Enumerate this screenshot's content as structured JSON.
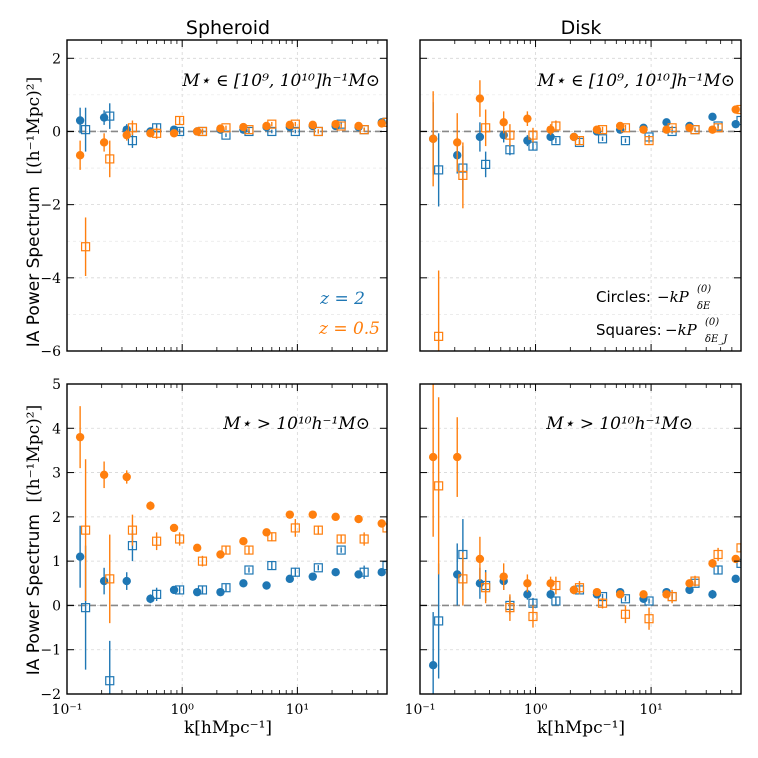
{
  "figure": {
    "column_titles": [
      "Spheroid",
      "Disk"
    ],
    "ylabel": "IA Power Spectrum",
    "ylabel_units": "[(h⁻¹Mpc)²]",
    "xlabel": "k[hMpc⁻¹]",
    "x_tick_labels": [
      "10⁻¹",
      "10⁰",
      "10¹"
    ],
    "series_legend": [
      {
        "name": "z = 2",
        "color": "#1f77b4"
      },
      {
        "name": "z = 0.5",
        "color": "#ff7f0e"
      }
    ],
    "marker_notes": [
      {
        "label": "Circles:",
        "math": "−kP",
        "sub": "δE",
        "sup": "(0)"
      },
      {
        "label": "Squares:",
        "math": "−kP",
        "sub": "δE_J",
        "sup": "(0)"
      }
    ]
  },
  "chart_data": [
    {
      "type": "scatter",
      "panel": "top-left",
      "title": "Spheroid",
      "annotation": "M⋆ ∈ [10⁹, 10¹⁰]h⁻¹M⊙",
      "xscale": "log",
      "xlim": [
        0.1,
        60
      ],
      "ylim": [
        -6,
        2.5
      ],
      "yticks": [
        -6,
        -4,
        -2,
        0,
        2
      ],
      "ylabel": "IA Power Spectrum [(h⁻¹Mpc)²]",
      "series": [
        {
          "name": "z = 2 circles",
          "color": "#1f77b4",
          "marker": "circle",
          "x": [
            0.13,
            0.21,
            0.33,
            0.53,
            0.85,
            1.35,
            2.15,
            3.4,
            5.4,
            8.6,
            13.6,
            21.5,
            34,
            54
          ],
          "y": [
            0.3,
            0.38,
            0.05,
            0.0,
            0.05,
            0.0,
            0.05,
            0.05,
            0.12,
            0.12,
            0.15,
            0.15,
            0.12,
            0.25
          ],
          "err": [
            0.35,
            0.2,
            0.15,
            0.1,
            0.08,
            0.06,
            0.05,
            0.05,
            0.05,
            0.05,
            0.05,
            0.05,
            0.05,
            0.05
          ]
        },
        {
          "name": "z = 2 squares",
          "color": "#1f77b4",
          "marker": "square",
          "x": [
            0.145,
            0.235,
            0.37,
            0.6,
            0.95,
            1.5,
            2.4,
            3.8,
            6.0,
            9.6,
            15.2,
            24,
            38,
            60
          ],
          "y": [
            0.05,
            0.42,
            -0.25,
            0.1,
            0.0,
            0.0,
            -0.1,
            0.0,
            0.0,
            0.0,
            0.0,
            0.2,
            0.05,
            0.25
          ],
          "err": [
            0.6,
            0.35,
            0.2,
            0.1,
            0.08,
            0.06,
            0.05,
            0.05,
            0.05,
            0.05,
            0.05,
            0.05,
            0.05,
            0.05
          ]
        },
        {
          "name": "z = 0.5 circles",
          "color": "#ff7f0e",
          "marker": "circle",
          "x": [
            0.13,
            0.21,
            0.33,
            0.53,
            0.85,
            1.35,
            2.15,
            3.4,
            5.4,
            8.6,
            13.6,
            21.5,
            34,
            54
          ],
          "y": [
            -0.65,
            -0.3,
            -0.1,
            -0.05,
            -0.05,
            0.0,
            0.08,
            0.12,
            0.15,
            0.18,
            0.18,
            0.2,
            0.15,
            0.22
          ],
          "err": [
            0.4,
            0.25,
            0.15,
            0.1,
            0.08,
            0.06,
            0.05,
            0.05,
            0.05,
            0.05,
            0.05,
            0.05,
            0.05,
            0.05
          ]
        },
        {
          "name": "z = 0.5 squares",
          "color": "#ff7f0e",
          "marker": "square",
          "x": [
            0.145,
            0.235,
            0.37,
            0.6,
            0.95,
            1.5,
            2.4,
            3.8,
            6.0,
            9.6,
            15.2,
            24,
            38,
            60
          ],
          "y": [
            -3.15,
            -0.75,
            0.1,
            -0.05,
            0.3,
            0.0,
            0.1,
            0.05,
            0.2,
            0.2,
            0.0,
            0.15,
            0.05,
            0.25
          ],
          "err": [
            0.8,
            0.5,
            0.2,
            0.15,
            0.1,
            0.08,
            0.06,
            0.06,
            0.06,
            0.06,
            0.06,
            0.06,
            0.06,
            0.06
          ]
        }
      ]
    },
    {
      "type": "scatter",
      "panel": "top-right",
      "title": "Disk",
      "annotation": "M⋆ ∈ [10⁹, 10¹⁰]h⁻¹M⊙",
      "xscale": "log",
      "xlim": [
        0.1,
        60
      ],
      "ylim": [
        -6,
        2.5
      ],
      "yticks": [
        -6,
        -4,
        -2,
        0,
        2
      ],
      "series": [
        {
          "name": "z = 2 circles",
          "color": "#1f77b4",
          "marker": "circle",
          "x": [
            0.13,
            0.21,
            0.33,
            0.53,
            0.85,
            1.35,
            2.15,
            3.4,
            5.4,
            8.6,
            13.6,
            21.5,
            34,
            54
          ],
          "y": [
            -0.2,
            -0.65,
            -0.15,
            -0.1,
            -0.25,
            -0.15,
            -0.15,
            0.0,
            0.05,
            0.1,
            0.25,
            0.15,
            0.4,
            0.2
          ],
          "err": [
            1.0,
            0.5,
            0.4,
            0.2,
            0.15,
            0.1,
            0.08,
            0.06,
            0.06,
            0.06,
            0.06,
            0.06,
            0.1,
            0.06
          ]
        },
        {
          "name": "z = 2 squares",
          "color": "#1f77b4",
          "marker": "square",
          "x": [
            0.145,
            0.235,
            0.37,
            0.6,
            0.95,
            1.5,
            2.4,
            3.8,
            6.0,
            9.6,
            15.2,
            24,
            38,
            60
          ],
          "y": [
            -1.05,
            -1.0,
            -0.9,
            -0.5,
            -0.4,
            -0.25,
            -0.3,
            -0.2,
            -0.25,
            -0.15,
            0.0,
            0.05,
            0.15,
            0.3
          ],
          "err": [
            1.0,
            0.6,
            0.35,
            0.15,
            0.1,
            0.08,
            0.06,
            0.06,
            0.06,
            0.06,
            0.06,
            0.06,
            0.06,
            0.06
          ]
        },
        {
          "name": "z = 0.5 circles",
          "color": "#ff7f0e",
          "marker": "circle",
          "x": [
            0.13,
            0.21,
            0.33,
            0.53,
            0.85,
            1.35,
            2.15,
            3.4,
            5.4,
            8.6,
            13.6,
            21.5,
            34,
            54
          ],
          "y": [
            -0.2,
            -0.3,
            0.9,
            0.25,
            0.35,
            0.05,
            -0.15,
            0.05,
            0.15,
            0.05,
            0.05,
            0.1,
            0.05,
            0.6
          ],
          "err": [
            1.3,
            0.8,
            0.5,
            0.3,
            0.2,
            0.15,
            0.1,
            0.08,
            0.08,
            0.08,
            0.06,
            0.06,
            0.06,
            0.06
          ]
        },
        {
          "name": "z = 0.5 squares",
          "color": "#ff7f0e",
          "marker": "square",
          "x": [
            0.145,
            0.235,
            0.37,
            0.6,
            0.95,
            1.5,
            2.4,
            3.8,
            6.0,
            9.6,
            15.2,
            24,
            38,
            60
          ],
          "y": [
            -5.6,
            -1.2,
            0.1,
            -0.1,
            -0.1,
            0.15,
            -0.25,
            0.05,
            0.1,
            -0.25,
            0.1,
            0.05,
            0.1,
            0.6
          ],
          "err": [
            1.8,
            0.9,
            0.5,
            0.3,
            0.2,
            0.15,
            0.1,
            0.08,
            0.08,
            0.08,
            0.06,
            0.06,
            0.06,
            0.06
          ]
        }
      ]
    },
    {
      "type": "scatter",
      "panel": "bottom-left",
      "title": "",
      "annotation": "M⋆ > 10¹⁰h⁻¹M⊙",
      "xscale": "log",
      "xlim": [
        0.1,
        60
      ],
      "ylim": [
        -2,
        5
      ],
      "yticks": [
        -2,
        -1,
        0,
        1,
        2,
        3,
        4,
        5
      ],
      "xlabel": "k[hMpc⁻¹]",
      "ylabel": "IA Power Spectrum [(h⁻¹Mpc)²]",
      "series": [
        {
          "name": "z = 2 circles",
          "color": "#1f77b4",
          "marker": "circle",
          "x": [
            0.13,
            0.21,
            0.33,
            0.53,
            0.85,
            1.35,
            2.15,
            3.4,
            5.4,
            8.6,
            13.6,
            21.5,
            34,
            54
          ],
          "y": [
            1.1,
            0.55,
            0.55,
            0.15,
            0.35,
            0.3,
            0.3,
            0.5,
            0.45,
            0.6,
            0.65,
            0.75,
            0.7,
            0.75
          ],
          "err": [
            0.7,
            0.3,
            0.2,
            0.1,
            0.08,
            0.06,
            0.05,
            0.05,
            0.05,
            0.05,
            0.05,
            0.05,
            0.05,
            0.05
          ]
        },
        {
          "name": "z = 2 squares",
          "color": "#1f77b4",
          "marker": "square",
          "x": [
            0.145,
            0.235,
            0.37,
            0.6,
            0.95,
            1.5,
            2.4,
            3.8,
            6.0,
            9.6,
            15.2,
            24,
            38,
            60
          ],
          "y": [
            -0.05,
            -1.7,
            1.35,
            0.25,
            0.35,
            0.35,
            0.4,
            0.8,
            0.9,
            0.75,
            0.85,
            1.25,
            0.75,
            0.9
          ],
          "err": [
            1.4,
            0.9,
            0.35,
            0.15,
            0.1,
            0.08,
            0.08,
            0.06,
            0.1,
            0.1,
            0.06,
            0.06,
            0.15,
            0.06
          ]
        },
        {
          "name": "z = 0.5 circles",
          "color": "#ff7f0e",
          "marker": "circle",
          "x": [
            0.13,
            0.21,
            0.33,
            0.53,
            0.85,
            1.35,
            2.15,
            3.4,
            5.4,
            8.6,
            13.6,
            21.5,
            34,
            54
          ],
          "y": [
            3.8,
            2.95,
            2.9,
            2.25,
            1.75,
            1.3,
            1.15,
            1.45,
            1.65,
            2.05,
            2.05,
            2.0,
            1.95,
            1.85
          ],
          "err": [
            0.7,
            0.3,
            0.15,
            0.1,
            0.08,
            0.06,
            0.05,
            0.05,
            0.05,
            0.05,
            0.05,
            0.05,
            0.05,
            0.05
          ]
        },
        {
          "name": "z = 0.5 squares",
          "color": "#ff7f0e",
          "marker": "square",
          "x": [
            0.145,
            0.235,
            0.37,
            0.6,
            0.95,
            1.5,
            2.4,
            3.8,
            6.0,
            9.6,
            15.2,
            24,
            38,
            60
          ],
          "y": [
            1.7,
            0.6,
            1.7,
            1.45,
            1.5,
            1.0,
            1.25,
            1.25,
            1.55,
            1.75,
            1.7,
            1.5,
            1.5,
            1.75
          ],
          "err": [
            1.6,
            1.0,
            0.35,
            0.2,
            0.15,
            0.12,
            0.1,
            0.1,
            0.1,
            0.2,
            0.1,
            0.1,
            0.15,
            0.1
          ]
        }
      ]
    },
    {
      "type": "scatter",
      "panel": "bottom-right",
      "title": "",
      "annotation": "M⋆ > 10¹⁰h⁻¹M⊙",
      "xscale": "log",
      "xlim": [
        0.1,
        60
      ],
      "ylim": [
        -2,
        5
      ],
      "yticks": [
        -2,
        -1,
        0,
        1,
        2,
        3,
        4,
        5
      ],
      "xlabel": "k[hMpc⁻¹]",
      "series": [
        {
          "name": "z = 2 circles",
          "color": "#1f77b4",
          "marker": "circle",
          "x": [
            0.13,
            0.21,
            0.33,
            0.53,
            0.85,
            1.35,
            2.15,
            3.4,
            5.4,
            8.6,
            13.6,
            21.5,
            34,
            54
          ],
          "y": [
            -1.35,
            0.7,
            0.5,
            0.55,
            0.25,
            0.25,
            0.35,
            0.25,
            0.3,
            0.15,
            0.3,
            0.35,
            0.25,
            0.6
          ],
          "err": [
            1.2,
            0.7,
            0.35,
            0.2,
            0.12,
            0.1,
            0.08,
            0.06,
            0.06,
            0.06,
            0.06,
            0.06,
            0.1,
            0.06
          ]
        },
        {
          "name": "z = 2 squares",
          "color": "#1f77b4",
          "marker": "square",
          "x": [
            0.145,
            0.235,
            0.37,
            0.6,
            0.95,
            1.5,
            2.4,
            3.8,
            6.0,
            9.6,
            15.2,
            24,
            38,
            60
          ],
          "y": [
            -0.35,
            1.15,
            0.45,
            0.0,
            0.05,
            0.1,
            0.35,
            0.2,
            0.15,
            0.1,
            0.2,
            0.5,
            0.8,
            0.95
          ],
          "err": [
            1.3,
            0.8,
            0.35,
            0.2,
            0.12,
            0.1,
            0.08,
            0.06,
            0.06,
            0.06,
            0.06,
            0.06,
            0.1,
            0.06
          ]
        },
        {
          "name": "z = 0.5 circles",
          "color": "#ff7f0e",
          "marker": "circle",
          "x": [
            0.13,
            0.21,
            0.33,
            0.53,
            0.85,
            1.35,
            2.15,
            3.4,
            5.4,
            8.6,
            13.6,
            21.5,
            34,
            54
          ],
          "y": [
            3.35,
            3.35,
            1.05,
            0.65,
            0.5,
            0.5,
            0.35,
            0.3,
            0.25,
            0.25,
            0.25,
            0.5,
            0.95,
            1.05
          ],
          "err": [
            1.8,
            0.9,
            0.5,
            0.3,
            0.2,
            0.15,
            0.1,
            0.08,
            0.08,
            0.08,
            0.06,
            0.06,
            0.1,
            0.06
          ]
        },
        {
          "name": "z = 0.5 squares",
          "color": "#ff7f0e",
          "marker": "square",
          "x": [
            0.145,
            0.235,
            0.37,
            0.6,
            0.95,
            1.5,
            2.4,
            3.8,
            6.0,
            9.6,
            15.2,
            24,
            38,
            60
          ],
          "y": [
            2.7,
            0.6,
            0.4,
            -0.05,
            -0.25,
            0.45,
            0.4,
            0.05,
            -0.2,
            -0.3,
            0.2,
            0.55,
            1.15,
            1.3
          ],
          "err": [
            2.0,
            0.6,
            0.35,
            0.3,
            0.25,
            0.2,
            0.15,
            0.12,
            0.2,
            0.25,
            0.15,
            0.12,
            0.15,
            0.1
          ]
        }
      ]
    }
  ]
}
